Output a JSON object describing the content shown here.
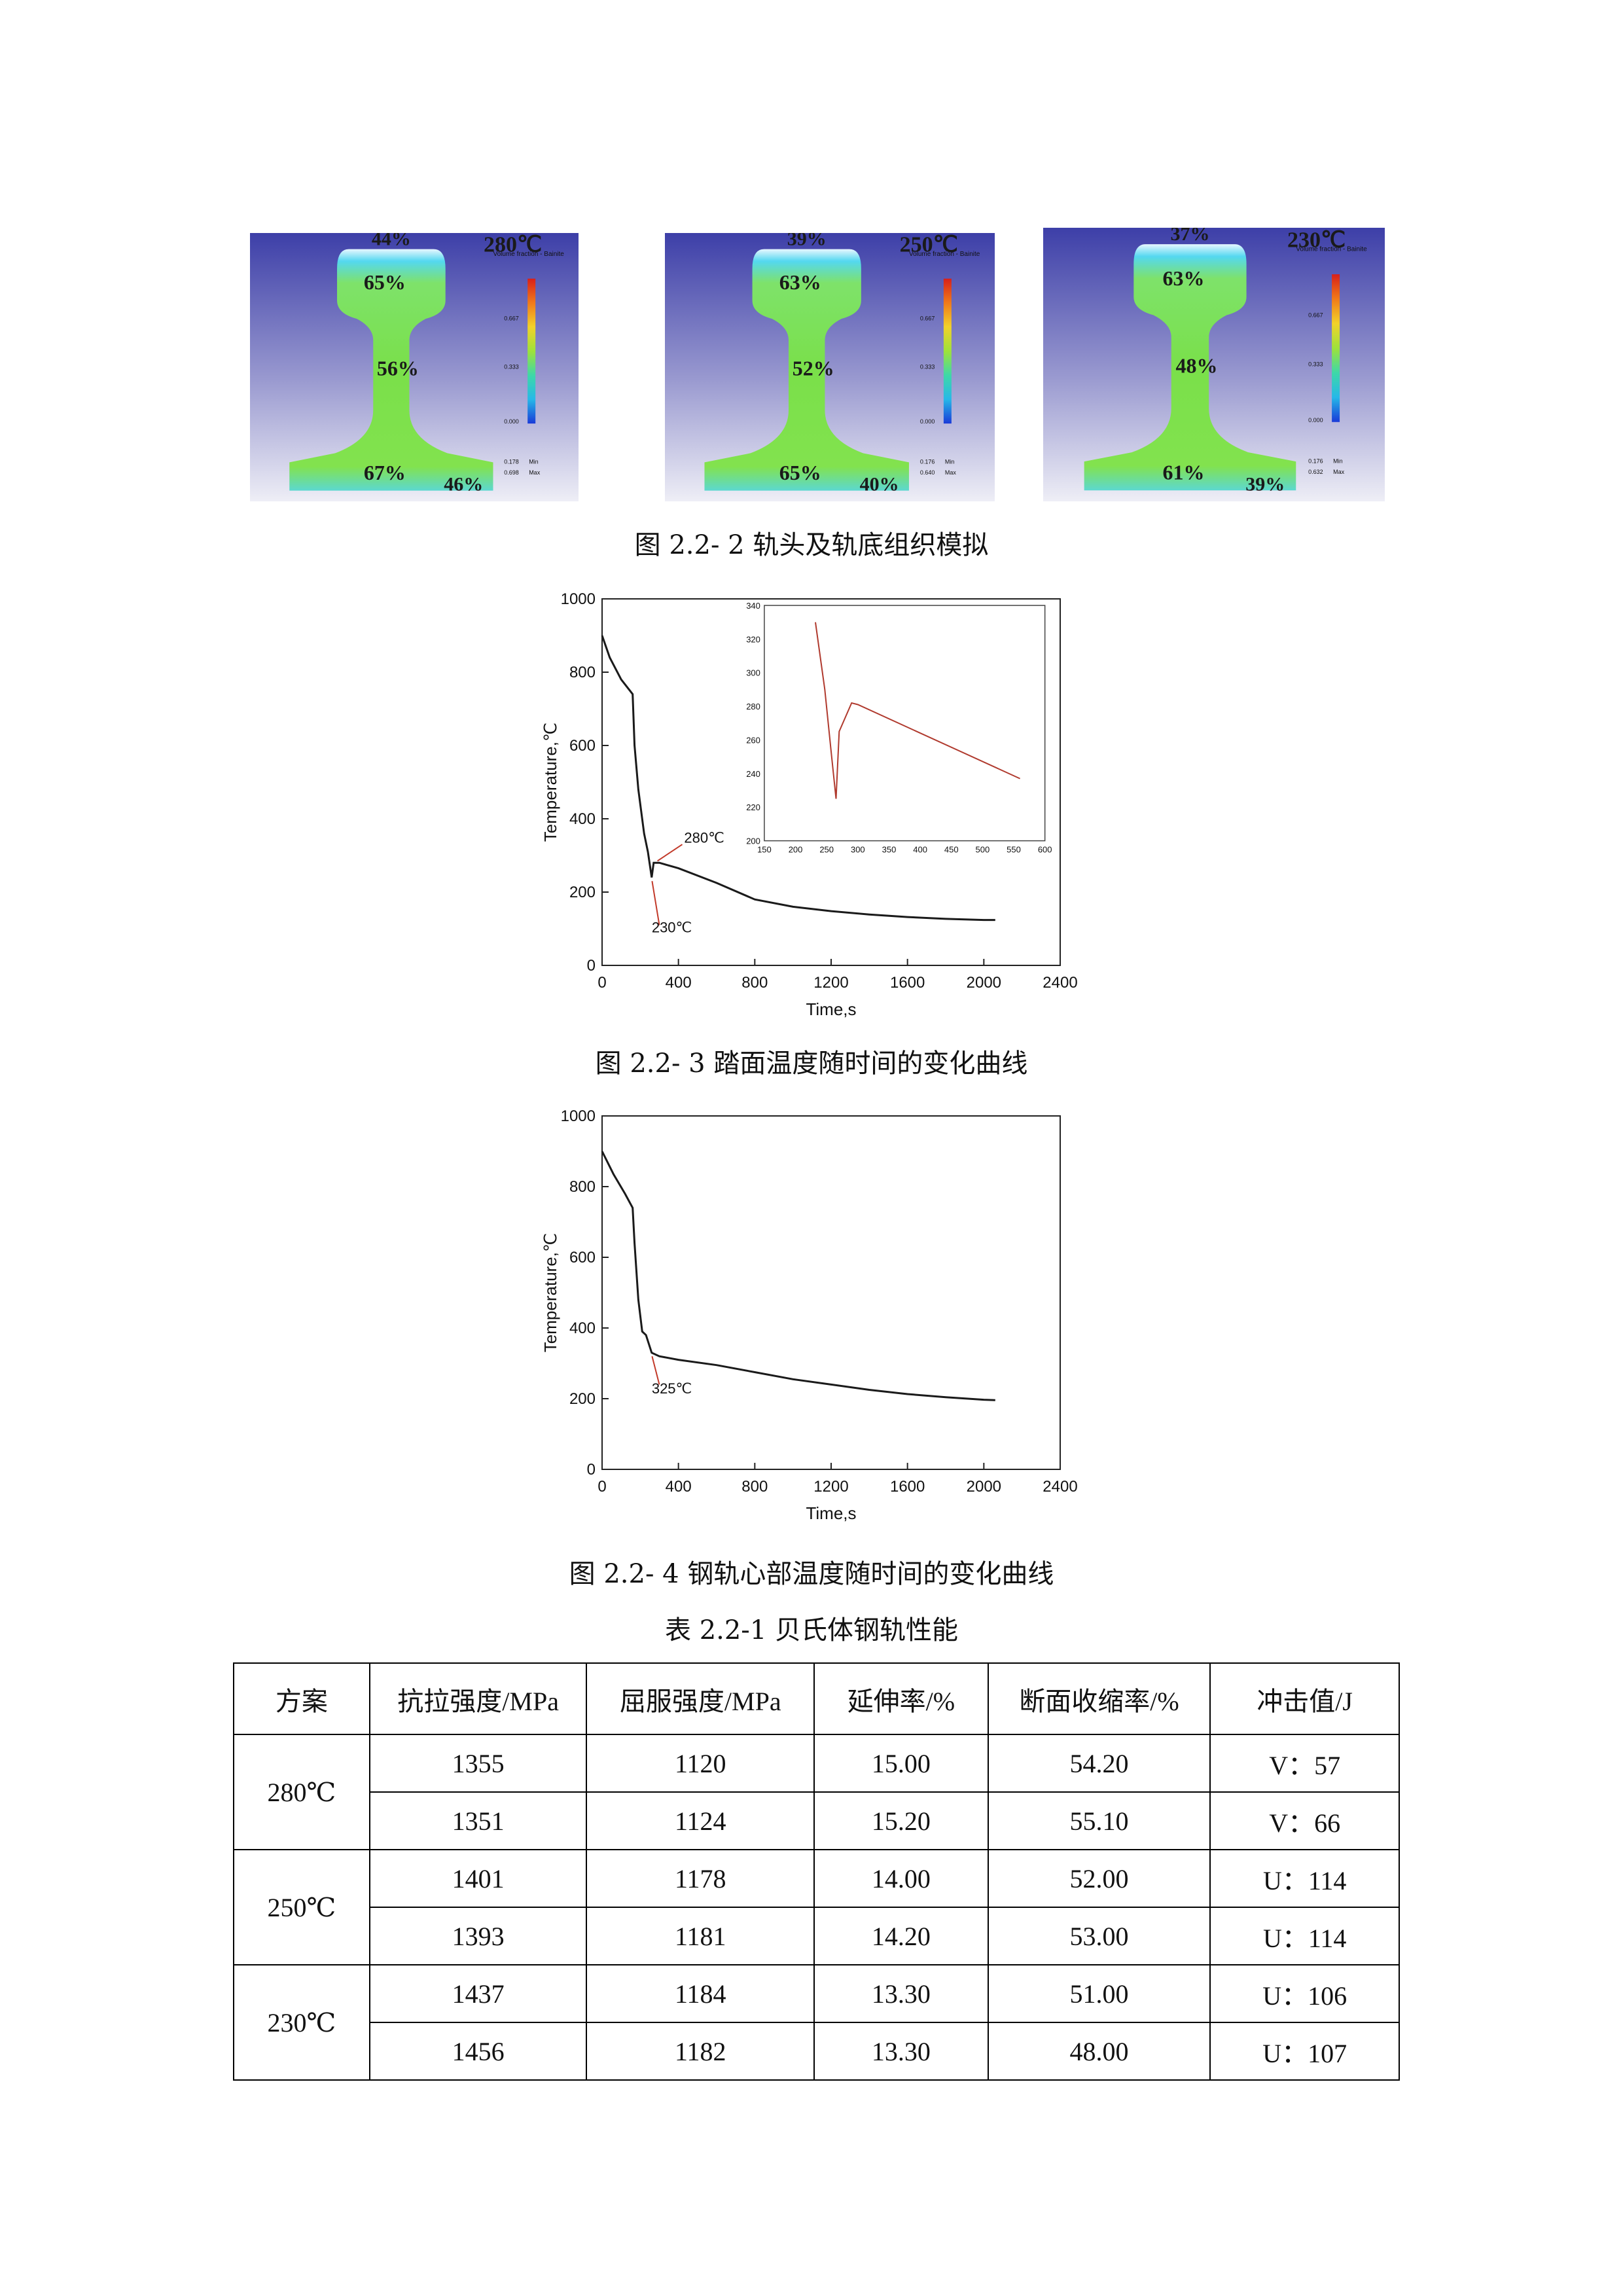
{
  "figure_1": {
    "caption": "图 2.2- 2 轨头及轨底组织模拟",
    "panels": [
      {
        "temp": "280℃",
        "top": "44%",
        "head": "65%",
        "web": "56%",
        "foot": "67%",
        "foot_edge": "46%",
        "legend_title": "Volume fraction - Bainite",
        "legend_ticks": [
          "0.667",
          "0.333",
          "0.000"
        ],
        "min": "0.178",
        "max": "0.698",
        "min_label": "Min",
        "max_label": "Max"
      },
      {
        "temp": "250℃",
        "top": "39%",
        "head": "63%",
        "web": "52%",
        "foot": "65%",
        "foot_edge": "40%",
        "legend_title": "Volume fraction - Bainite",
        "legend_ticks": [
          "0.667",
          "0.333",
          "0.000"
        ],
        "min": "0.176",
        "max": "0.640",
        "min_label": "Min",
        "max_label": "Max"
      },
      {
        "temp": "230℃",
        "top": "37%",
        "head": "63%",
        "web": "48%",
        "foot": "61%",
        "foot_edge": "39%",
        "legend_title": "Volume fraction - Bainite",
        "legend_ticks": [
          "0.667",
          "0.333",
          "0.000"
        ],
        "min": "0.176",
        "max": "0.632",
        "min_label": "Min",
        "max_label": "Max"
      }
    ]
  },
  "figure_2": {
    "caption": "图 2.2- 3  踏面温度随时间的变化曲线",
    "annotation_high": "280℃",
    "annotation_low": "230℃"
  },
  "figure_3": {
    "caption": "图 2.2- 4  钢轨心部温度随时间的变化曲线",
    "annotation": "325℃"
  },
  "chart_data": [
    {
      "type": "line",
      "title": "",
      "xlabel": "Time,s",
      "ylabel": "Temperature,℃",
      "xlim": [
        0,
        2400
      ],
      "ylim": [
        0,
        1000
      ],
      "xticks": [
        0,
        400,
        800,
        1200,
        1600,
        2000,
        2400
      ],
      "yticks": [
        0,
        200,
        400,
        600,
        800,
        1000
      ],
      "series": [
        {
          "x": [
            0,
            40,
            100,
            160,
            170,
            190,
            220,
            240,
            260,
            270,
            300,
            400,
            600,
            800,
            1000,
            1200,
            1400,
            1600,
            1800,
            2000,
            2060
          ],
          "y": [
            900,
            840,
            780,
            740,
            600,
            480,
            360,
            310,
            240,
            280,
            280,
            265,
            225,
            180,
            160,
            148,
            139,
            132,
            127,
            124,
            124
          ]
        }
      ],
      "annotations": [
        "280℃",
        "230℃"
      ],
      "inset": {
        "xlim": [
          150,
          600
        ],
        "ylim": [
          200,
          340
        ],
        "xticks": [
          150,
          200,
          250,
          300,
          350,
          400,
          450,
          500,
          550,
          600
        ],
        "yticks": [
          200,
          220,
          240,
          260,
          280,
          300,
          320,
          340
        ],
        "series": [
          {
            "x": [
              232,
              247,
              258,
              265,
              270,
              290,
              300,
              560
            ],
            "y": [
              330,
              290,
              250,
              225,
              265,
              282,
              281,
              237
            ]
          }
        ]
      }
    },
    {
      "type": "line",
      "title": "",
      "xlabel": "Time,s",
      "ylabel": "Temperature,℃",
      "xlim": [
        0,
        2400
      ],
      "ylim": [
        0,
        1000
      ],
      "xticks": [
        0,
        400,
        800,
        1200,
        1600,
        2000,
        2400
      ],
      "yticks": [
        0,
        200,
        400,
        600,
        800,
        1000
      ],
      "series": [
        {
          "x": [
            0,
            60,
            120,
            160,
            170,
            190,
            210,
            230,
            260,
            300,
            400,
            600,
            800,
            1000,
            1200,
            1400,
            1600,
            1800,
            2000,
            2060
          ],
          "y": [
            900,
            835,
            780,
            740,
            640,
            480,
            390,
            380,
            330,
            320,
            310,
            295,
            275,
            255,
            240,
            225,
            213,
            204,
            197,
            196
          ]
        }
      ],
      "annotations": [
        "325℃"
      ]
    }
  ],
  "table": {
    "caption": "表 2.2-1 贝氏体钢轨性能",
    "headers": [
      "方案",
      "抗拉强度/MPa",
      "屈服强度/MPa",
      "延伸率/%",
      "断面收缩率/%",
      "冲击值/J"
    ],
    "groups": [
      {
        "scheme": "280℃",
        "rows": [
          [
            "1355",
            "1120",
            "15.00",
            "54.20",
            "V：57"
          ],
          [
            "1351",
            "1124",
            "15.20",
            "55.10",
            "V：66"
          ]
        ]
      },
      {
        "scheme": "250℃",
        "rows": [
          [
            "1401",
            "1178",
            "14.00",
            "52.00",
            "U：114"
          ],
          [
            "1393",
            "1181",
            "14.20",
            "53.00",
            "U：114"
          ]
        ]
      },
      {
        "scheme": "230℃",
        "rows": [
          [
            "1437",
            "1184",
            "13.30",
            "51.00",
            "U：106"
          ],
          [
            "1456",
            "1182",
            "13.30",
            "48.00",
            "U：107"
          ]
        ]
      }
    ]
  }
}
